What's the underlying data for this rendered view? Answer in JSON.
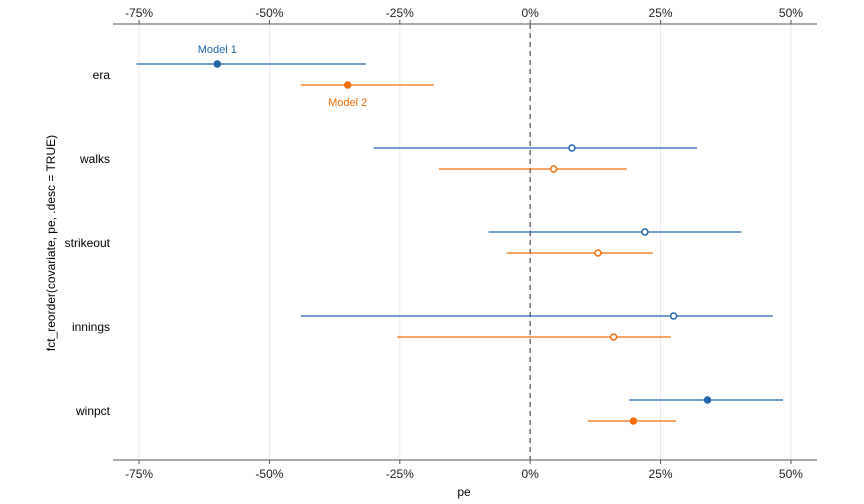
{
  "chart_data": {
    "type": "forest",
    "xlabel": "pe",
    "ylabel": "fct_reorder(covariate, pe, .desc = TRUE)",
    "xlim": [
      -0.8,
      0.55
    ],
    "x_ticks": [
      -0.75,
      -0.5,
      -0.25,
      0,
      0.25,
      0.5
    ],
    "x_tick_labels": [
      "-75%",
      "-50%",
      "-25%",
      "0%",
      "25%",
      "50%"
    ],
    "reference_line": 0,
    "grid": "vertical",
    "categories": [
      "era",
      "walks",
      "strikeout",
      "innings",
      "winpct"
    ],
    "series": [
      {
        "name": "Model 1",
        "color": "#2166ac",
        "points": [
          {
            "covariate": "era",
            "pe": -0.6,
            "low": -0.755,
            "high": -0.315,
            "significant": true
          },
          {
            "covariate": "walks",
            "pe": 0.08,
            "low": -0.3,
            "high": 0.32,
            "significant": false
          },
          {
            "covariate": "strikeout",
            "pe": 0.22,
            "low": -0.08,
            "high": 0.405,
            "significant": false
          },
          {
            "covariate": "innings",
            "pe": 0.275,
            "low": -0.44,
            "high": 0.465,
            "significant": false
          },
          {
            "covariate": "winpct",
            "pe": 0.34,
            "low": 0.19,
            "high": 0.485,
            "significant": true
          }
        ]
      },
      {
        "name": "Model 2",
        "color": "#f46d0a",
        "points": [
          {
            "covariate": "era",
            "pe": -0.35,
            "low": -0.44,
            "high": -0.185,
            "significant": true
          },
          {
            "covariate": "walks",
            "pe": 0.045,
            "low": -0.175,
            "high": 0.185,
            "significant": false
          },
          {
            "covariate": "strikeout",
            "pe": 0.13,
            "low": -0.045,
            "high": 0.235,
            "significant": false
          },
          {
            "covariate": "innings",
            "pe": 0.16,
            "low": -0.255,
            "high": 0.27,
            "significant": false
          },
          {
            "covariate": "winpct",
            "pe": 0.198,
            "low": 0.11,
            "high": 0.28,
            "significant": true
          }
        ]
      }
    ],
    "annotations": [
      {
        "text": "Model 1",
        "series": "Model 1",
        "covariate": "era",
        "position": "above"
      },
      {
        "text": "Model 2",
        "series": "Model 2",
        "covariate": "era",
        "position": "below"
      }
    ]
  }
}
